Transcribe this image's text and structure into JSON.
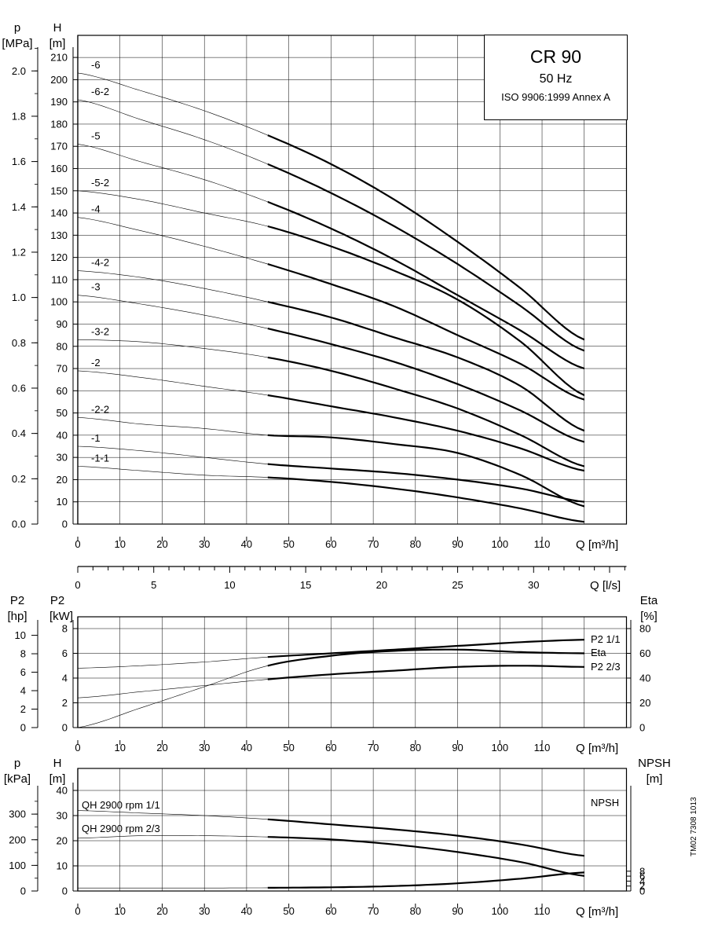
{
  "header": {
    "model": "CR 90",
    "frequency": "50 Hz",
    "standard": "ISO 9906:1999 Annex A"
  },
  "doc_code": "TM02 7308 1013",
  "chart_data": [
    {
      "type": "line",
      "name": "head",
      "xlabel": "Q [m³/h]",
      "ylabel": "H [m]",
      "secondary_ylabel": "p [MPa]",
      "xlim": [
        0,
        130
      ],
      "ylim": [
        0,
        220
      ],
      "secondary_ylim": [
        0.0,
        2.2
      ],
      "xticks": [
        0,
        10,
        20,
        30,
        40,
        50,
        60,
        70,
        80,
        90,
        100,
        110
      ],
      "yticks": [
        0,
        10,
        20,
        30,
        40,
        50,
        60,
        70,
        80,
        90,
        100,
        110,
        120,
        130,
        140,
        150,
        160,
        170,
        180,
        190,
        200,
        210
      ],
      "secondary_yticks": [
        0.0,
        0.2,
        0.4,
        0.6,
        0.8,
        1.0,
        1.2,
        1.4,
        1.6,
        1.8,
        2.0
      ],
      "grid": true,
      "x": [
        0,
        15,
        30,
        45,
        60,
        75,
        90,
        105,
        120
      ],
      "thin_until_x": 45,
      "series": [
        {
          "name": "-6",
          "values": [
            203,
            195,
            186,
            175,
            162,
            146,
            127,
            106,
            83
          ]
        },
        {
          "name": "-6-2",
          "values": [
            191,
            182,
            173,
            162,
            149,
            134,
            117,
            98,
            78
          ]
        },
        {
          "name": "-5",
          "values": [
            171,
            163,
            155,
            145,
            133,
            119,
            103,
            87,
            70
          ]
        },
        {
          "name": "-5-2",
          "values": [
            150,
            146,
            140,
            134,
            125,
            114,
            101,
            82,
            58
          ]
        },
        {
          "name": "-4",
          "values": [
            138,
            132,
            125,
            117,
            108,
            98,
            85,
            72,
            56
          ]
        },
        {
          "name": "-4-2",
          "values": [
            114,
            111,
            106,
            100,
            93,
            84,
            75,
            62,
            42
          ]
        },
        {
          "name": "-3",
          "values": [
            103,
            99,
            94,
            88,
            81,
            73,
            63,
            51,
            37
          ]
        },
        {
          "name": "-3-2",
          "values": [
            83,
            82,
            79,
            75,
            69,
            61,
            52,
            40,
            26
          ]
        },
        {
          "name": "-2",
          "values": [
            69,
            66,
            62,
            58,
            53,
            48,
            42,
            34,
            24
          ]
        },
        {
          "name": "-2-2",
          "values": [
            48,
            45,
            43,
            40,
            39,
            36,
            32,
            22,
            8
          ]
        },
        {
          "name": "-1",
          "values": [
            35,
            33,
            30,
            27,
            25,
            23,
            20,
            16,
            10
          ]
        },
        {
          "name": "-1-1",
          "values": [
            26,
            24,
            22,
            21,
            19,
            16,
            12,
            7,
            1
          ]
        }
      ],
      "secondary_xaxis": {
        "label": "Q [l/s]",
        "ticks": [
          0,
          5,
          10,
          15,
          20,
          25,
          30
        ]
      }
    },
    {
      "type": "line",
      "name": "power-efficiency",
      "xlabel": "Q [m³/h]",
      "ylabel": "P2 [kW]",
      "left_ylabel": "P2 [hp]",
      "right_ylabel": "Eta [%]",
      "xlim": [
        0,
        130
      ],
      "ylim": [
        0,
        9
      ],
      "yticks": [
        0,
        2,
        4,
        6,
        8
      ],
      "hp_ticks": [
        0,
        2,
        4,
        6,
        8,
        10
      ],
      "eta_ticks": [
        0,
        20,
        40,
        60,
        80
      ],
      "grid": true,
      "x": [
        0,
        15,
        30,
        45,
        60,
        75,
        90,
        105,
        120
      ],
      "thin_until_x": 45,
      "series": [
        {
          "name": "P2 1/1",
          "values": [
            4.8,
            5.0,
            5.3,
            5.7,
            6.0,
            6.3,
            6.6,
            6.9,
            7.1
          ]
        },
        {
          "name": "Eta",
          "values": [
            0,
            16,
            33,
            50,
            58,
            62,
            63,
            61,
            60
          ],
          "unit": "%",
          "axis": "right"
        },
        {
          "name": "P2 2/3",
          "values": [
            2.4,
            2.9,
            3.4,
            3.9,
            4.3,
            4.6,
            4.9,
            5.0,
            4.9
          ]
        }
      ]
    },
    {
      "type": "line",
      "name": "qh-npsh",
      "xlabel": "Q [m³/h]",
      "ylabel": "H [m]",
      "left_ylabel": "p [kPa]",
      "right_ylabel": "NPSH [m]",
      "xlim": [
        0,
        130
      ],
      "ylim": [
        0,
        45
      ],
      "yticks": [
        0,
        10,
        20,
        30,
        40
      ],
      "kpa_ticks": [
        0,
        100,
        200,
        300
      ],
      "npsh_ticks": [
        0,
        2,
        4,
        6,
        8
      ],
      "grid": true,
      "x": [
        0,
        15,
        30,
        45,
        60,
        75,
        90,
        105,
        120
      ],
      "thin_until_x": 45,
      "series": [
        {
          "name": "QH 2900 rpm 1/1",
          "values": [
            32,
            31,
            30,
            28.5,
            26.5,
            24.5,
            22,
            18.5,
            14
          ]
        },
        {
          "name": "QH 2900 rpm 2/3",
          "values": [
            21,
            22,
            22,
            21.5,
            20.5,
            18.5,
            15.5,
            11.5,
            6
          ]
        },
        {
          "name": "NPSH",
          "values": [
            1.2,
            1.2,
            1.2,
            1.3,
            1.5,
            2.0,
            3.1,
            5.0,
            7.5
          ],
          "unit": "m",
          "axis": "right"
        }
      ]
    }
  ]
}
